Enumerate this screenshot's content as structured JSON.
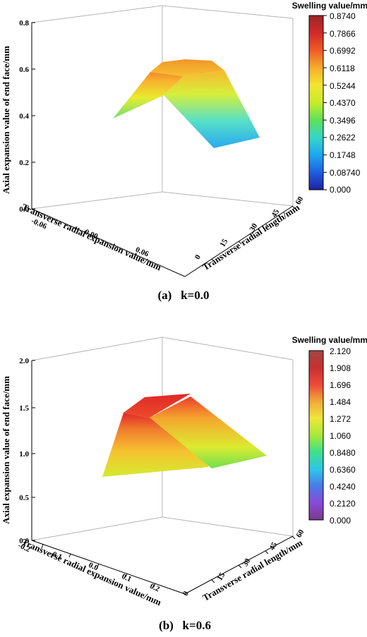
{
  "colors": {
    "colormap": [
      "#2020a0",
      "#1f5fe0",
      "#1ea7f0",
      "#36d6c8",
      "#5ee05a",
      "#c8ec2a",
      "#f3e532",
      "#f6ad2d",
      "#ef5a28",
      "#d22a28",
      "#9a2626"
    ],
    "axis": "#000000",
    "frame": "#b4b4b4"
  },
  "chart_data": [
    {
      "type": "surface3d",
      "caption": "(a)   k=0.0",
      "zlabel": "Axial expansion value of end face/mm",
      "xlabel": "Transverse radial expansion value/mm",
      "ylabel": "Transverse radial length/mm",
      "zlim": [
        0,
        0.8
      ],
      "z_ticks": [
        "0.0",
        "0.2",
        "0.4",
        "0.6",
        "0.8"
      ],
      "x_ticks": [
        "-0.06",
        "0.00",
        "0.06"
      ],
      "y_ticks": [
        "0",
        "15",
        "30",
        "45",
        "60"
      ],
      "colorbar": {
        "title": "Swelling value/mm",
        "range": [
          0,
          0.874
        ],
        "ticks": [
          "0.8740",
          "0.7866",
          "0.6992",
          "0.6118",
          "0.5244",
          "0.4370",
          "0.3496",
          "0.2622",
          "0.1748",
          "0.08740",
          "0.000"
        ]
      },
      "surface": [
        {
          "x": -0.06,
          "y": 0,
          "z": 0.4
        },
        {
          "x": -0.03,
          "y": 20,
          "z": 0.6
        },
        {
          "x": 0.0,
          "y": 30,
          "z": 0.66
        },
        {
          "x": 0.03,
          "y": 45,
          "z": 0.62
        },
        {
          "x": 0.06,
          "y": 60,
          "z": 0.3
        }
      ]
    },
    {
      "type": "surface3d",
      "caption": "(b)   k=0.6",
      "zlabel": "Axial expansion value of end face/mm",
      "xlabel": "Transverse radial expansion value/mm",
      "ylabel": "Transverse radial length/mm",
      "zlim": [
        0,
        2.0
      ],
      "z_ticks": [
        "0.0",
        "0.5",
        "1.0",
        "1.5",
        "2.0"
      ],
      "x_ticks": [
        "-0.2",
        "-0.1",
        "0.0",
        "0.1",
        "0.2"
      ],
      "y_ticks": [
        "0",
        "15",
        "30",
        "45",
        "60"
      ],
      "colorbar": {
        "title": "Swelling value/mm",
        "range": [
          0,
          2.12
        ],
        "ticks": [
          "2.120",
          "1.908",
          "1.696",
          "1.484",
          "1.272",
          "1.060",
          "0.8480",
          "0.6360",
          "0.4240",
          "0.2120",
          "0.000"
        ]
      },
      "surface": [
        {
          "x": -0.2,
          "y": 0,
          "z": 0.8
        },
        {
          "x": -0.1,
          "y": 20,
          "z": 1.45
        },
        {
          "x": 0.0,
          "y": 30,
          "z": 1.6
        },
        {
          "x": 0.1,
          "y": 45,
          "z": 1.3
        },
        {
          "x": 0.2,
          "y": 60,
          "z": 0.9
        }
      ]
    }
  ]
}
